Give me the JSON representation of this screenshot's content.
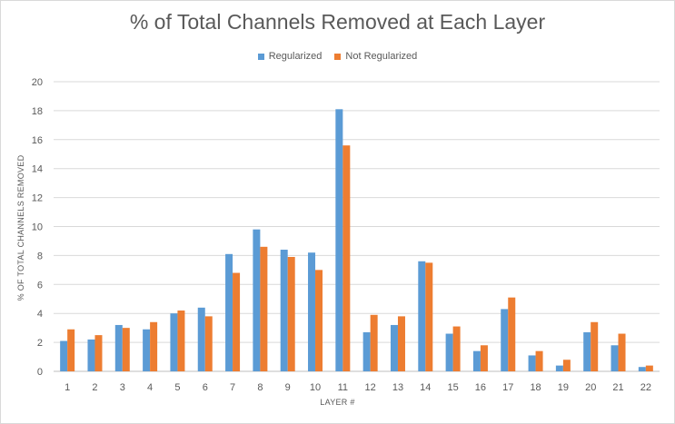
{
  "chart_data": {
    "type": "bar",
    "title": "% of Total Channels Removed at Each Layer",
    "xlabel": "LAYER #",
    "ylabel": "% OF TOTAL CHANNELS REMOVED",
    "categories": [
      "1",
      "2",
      "3",
      "4",
      "5",
      "6",
      "7",
      "8",
      "9",
      "10",
      "11",
      "12",
      "13",
      "14",
      "15",
      "16",
      "17",
      "18",
      "19",
      "20",
      "21",
      "22"
    ],
    "series": [
      {
        "name": "Regularized",
        "color": "#5b9bd5",
        "values": [
          2.1,
          2.2,
          3.2,
          2.9,
          4.0,
          4.4,
          8.1,
          9.8,
          8.4,
          8.2,
          18.1,
          2.7,
          3.2,
          7.6,
          2.6,
          1.4,
          4.3,
          1.1,
          0.4,
          2.7,
          1.8,
          0.3
        ]
      },
      {
        "name": "Not Regularized",
        "color": "#ed7d31",
        "values": [
          2.9,
          2.5,
          3.0,
          3.4,
          4.2,
          3.8,
          6.8,
          8.6,
          7.9,
          7.0,
          15.6,
          3.9,
          3.8,
          7.5,
          3.1,
          1.8,
          5.1,
          1.4,
          0.8,
          3.4,
          2.6,
          0.4
        ]
      }
    ],
    "ylim": [
      0,
      20
    ],
    "yticks": [
      "0",
      "2",
      "4",
      "6",
      "8",
      "10",
      "12",
      "14",
      "16",
      "18",
      "20"
    ],
    "grid": true,
    "legend": "top-center"
  }
}
